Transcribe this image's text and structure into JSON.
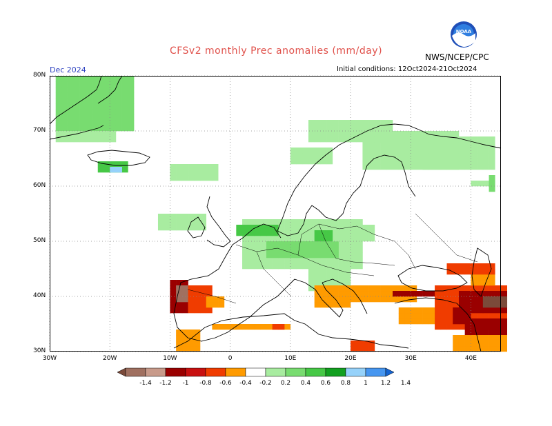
{
  "header": {
    "title": "CFSv2 monthly Prec anomalies (mm/day)",
    "agency": "NWS/NCEP/CPC",
    "logo_text": "NOAA",
    "period": "Dec 2024",
    "initial_conditions": "Initial conditions: 12Oct2024-21Oct2024"
  },
  "map": {
    "lon_range": [
      -30,
      45
    ],
    "lat_range": [
      30,
      80
    ],
    "x_ticks": [
      "30W",
      "20W",
      "10W",
      "0",
      "10E",
      "20E",
      "30E",
      "40E"
    ],
    "y_ticks": [
      "80N",
      "70N",
      "60N",
      "50N",
      "40N",
      "30N"
    ],
    "grid": true
  },
  "colorbar": {
    "labels": [
      "-1.4",
      "-1.2",
      "-1",
      "-0.8",
      "-0.6",
      "-0.4",
      "-0.2",
      "0.2",
      "0.4",
      "0.6",
      "0.8",
      "1",
      "1.2",
      "1.4"
    ],
    "colors": [
      "#7b4a3a",
      "#a07060",
      "#c89a8a",
      "#9a0000",
      "#c81010",
      "#f03c00",
      "#ff9b00",
      "#ffffff",
      "#a8eca0",
      "#78dc70",
      "#46c846",
      "#12a020",
      "#96d2fa",
      "#4696f0",
      "#1464d2"
    ]
  }
}
